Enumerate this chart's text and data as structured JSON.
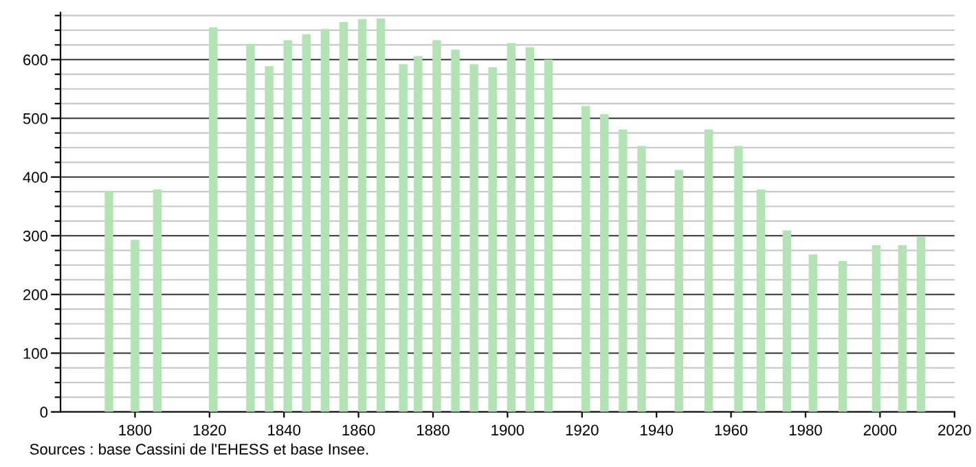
{
  "chart_data": {
    "type": "bar",
    "x": [
      1793,
      1800,
      1806,
      1821,
      1831,
      1836,
      1841,
      1846,
      1851,
      1856,
      1861,
      1866,
      1872,
      1876,
      1881,
      1886,
      1891,
      1896,
      1901,
      1906,
      1911,
      1921,
      1926,
      1931,
      1936,
      1946,
      1954,
      1962,
      1968,
      1975,
      1982,
      1990,
      1999,
      2006,
      2011
    ],
    "values": [
      376,
      293,
      379,
      655,
      627,
      589,
      633,
      643,
      652,
      664,
      669,
      670,
      592,
      606,
      633,
      617,
      592,
      587,
      628,
      621,
      600,
      521,
      507,
      481,
      453,
      412,
      481,
      453,
      379,
      309,
      268,
      257,
      284,
      284,
      298
    ],
    "color": "#b3e3b5",
    "xlim": [
      1780,
      2020
    ],
    "xticks": [
      1800,
      1820,
      1840,
      1860,
      1880,
      1900,
      1920,
      1940,
      1960,
      1980,
      2000,
      2020
    ],
    "ylim": [
      0,
      680
    ],
    "yticks": [
      0,
      {
        "value": 25,
        "label": null
      },
      {
        "value": 50,
        "label": null
      },
      {
        "value": 75,
        "label": null
      },
      100,
      {
        "value": 125,
        "label": null
      },
      {
        "value": 150,
        "label": null
      },
      {
        "value": 175,
        "label": null
      },
      200,
      {
        "value": 225,
        "label": null
      },
      {
        "value": 250,
        "label": null
      },
      {
        "value": 275,
        "label": null
      },
      300,
      {
        "value": 325,
        "label": null
      },
      {
        "value": 350,
        "label": null
      },
      {
        "value": 375,
        "label": null
      },
      400,
      {
        "value": 425,
        "label": null
      },
      {
        "value": 450,
        "label": null
      },
      {
        "value": 475,
        "label": null
      },
      500,
      {
        "value": 525,
        "label": null
      },
      {
        "value": 550,
        "label": null
      },
      {
        "value": 575,
        "label": null
      },
      600,
      {
        "value": 625,
        "label": null
      },
      {
        "value": 650,
        "label": null
      },
      {
        "value": 675,
        "label": null
      }
    ],
    "grid": "y",
    "annotations": [
      "Sources : base Cassini de l'EHESS et base Insee."
    ]
  }
}
